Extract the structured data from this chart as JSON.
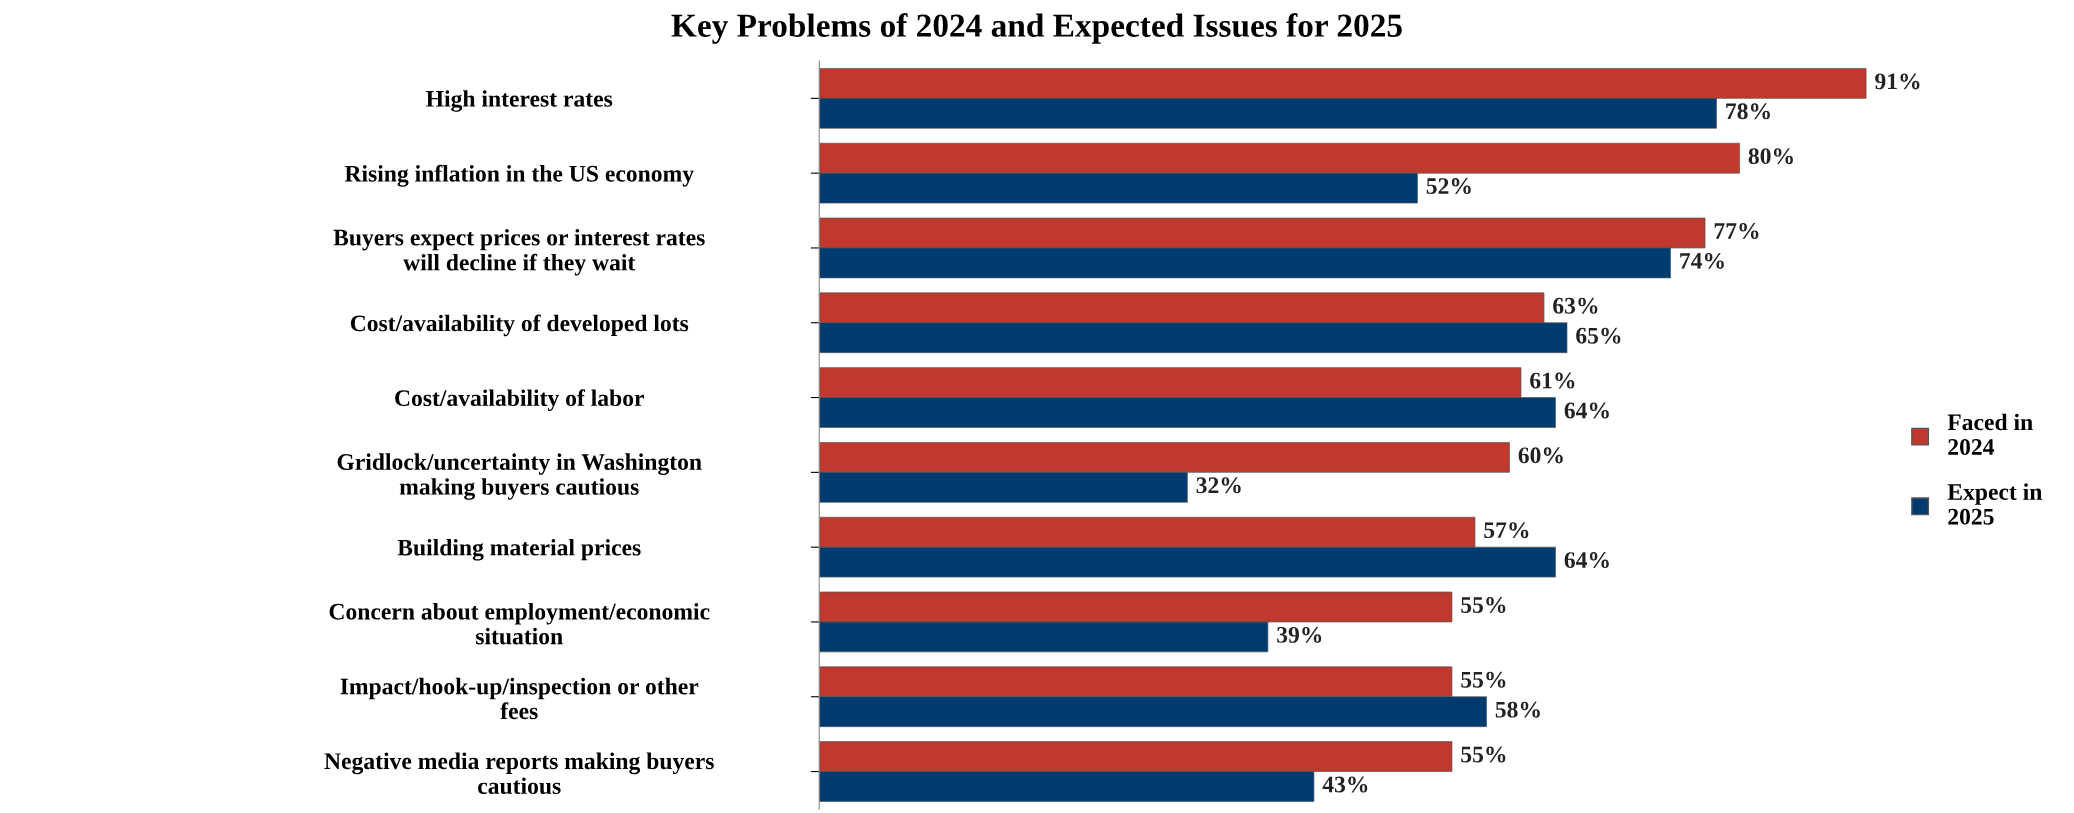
{
  "chart_data": {
    "type": "bar",
    "orientation": "horizontal",
    "title": "Key Problems of 2024 and Expected Issues for 2025",
    "categories": [
      "High interest rates",
      "Rising inflation in the US economy",
      "Buyers expect prices or interest rates\nwill decline if they wait",
      "Cost/availability of developed lots",
      "Cost/availability of labor",
      "Gridlock/uncertainty in Washington\nmaking buyers cautious",
      "Building material prices",
      "Concern about employment/economic\nsituation",
      "Impact/hook-up/inspection or other\nfees",
      "Negative media reports making buyers\ncautious"
    ],
    "series": [
      {
        "name": "Faced in\n2024",
        "color": "#c0392f",
        "values": [
          91,
          80,
          77,
          63,
          61,
          60,
          57,
          55,
          55,
          55
        ],
        "value_labels": [
          "91%",
          "80%",
          "77%",
          "63%",
          "61%",
          "60%",
          "57%",
          "55%",
          "55%",
          "55%"
        ]
      },
      {
        "name": "Expect in\n2025",
        "color": "#003b6f",
        "values": [
          78,
          52,
          74,
          65,
          64,
          32,
          64,
          39,
          58,
          43
        ],
        "value_labels": [
          "78%",
          "52%",
          "74%",
          "65%",
          "64%",
          "32%",
          "64%",
          "39%",
          "58%",
          "43%"
        ]
      }
    ],
    "legend": "right",
    "grid": false
  }
}
